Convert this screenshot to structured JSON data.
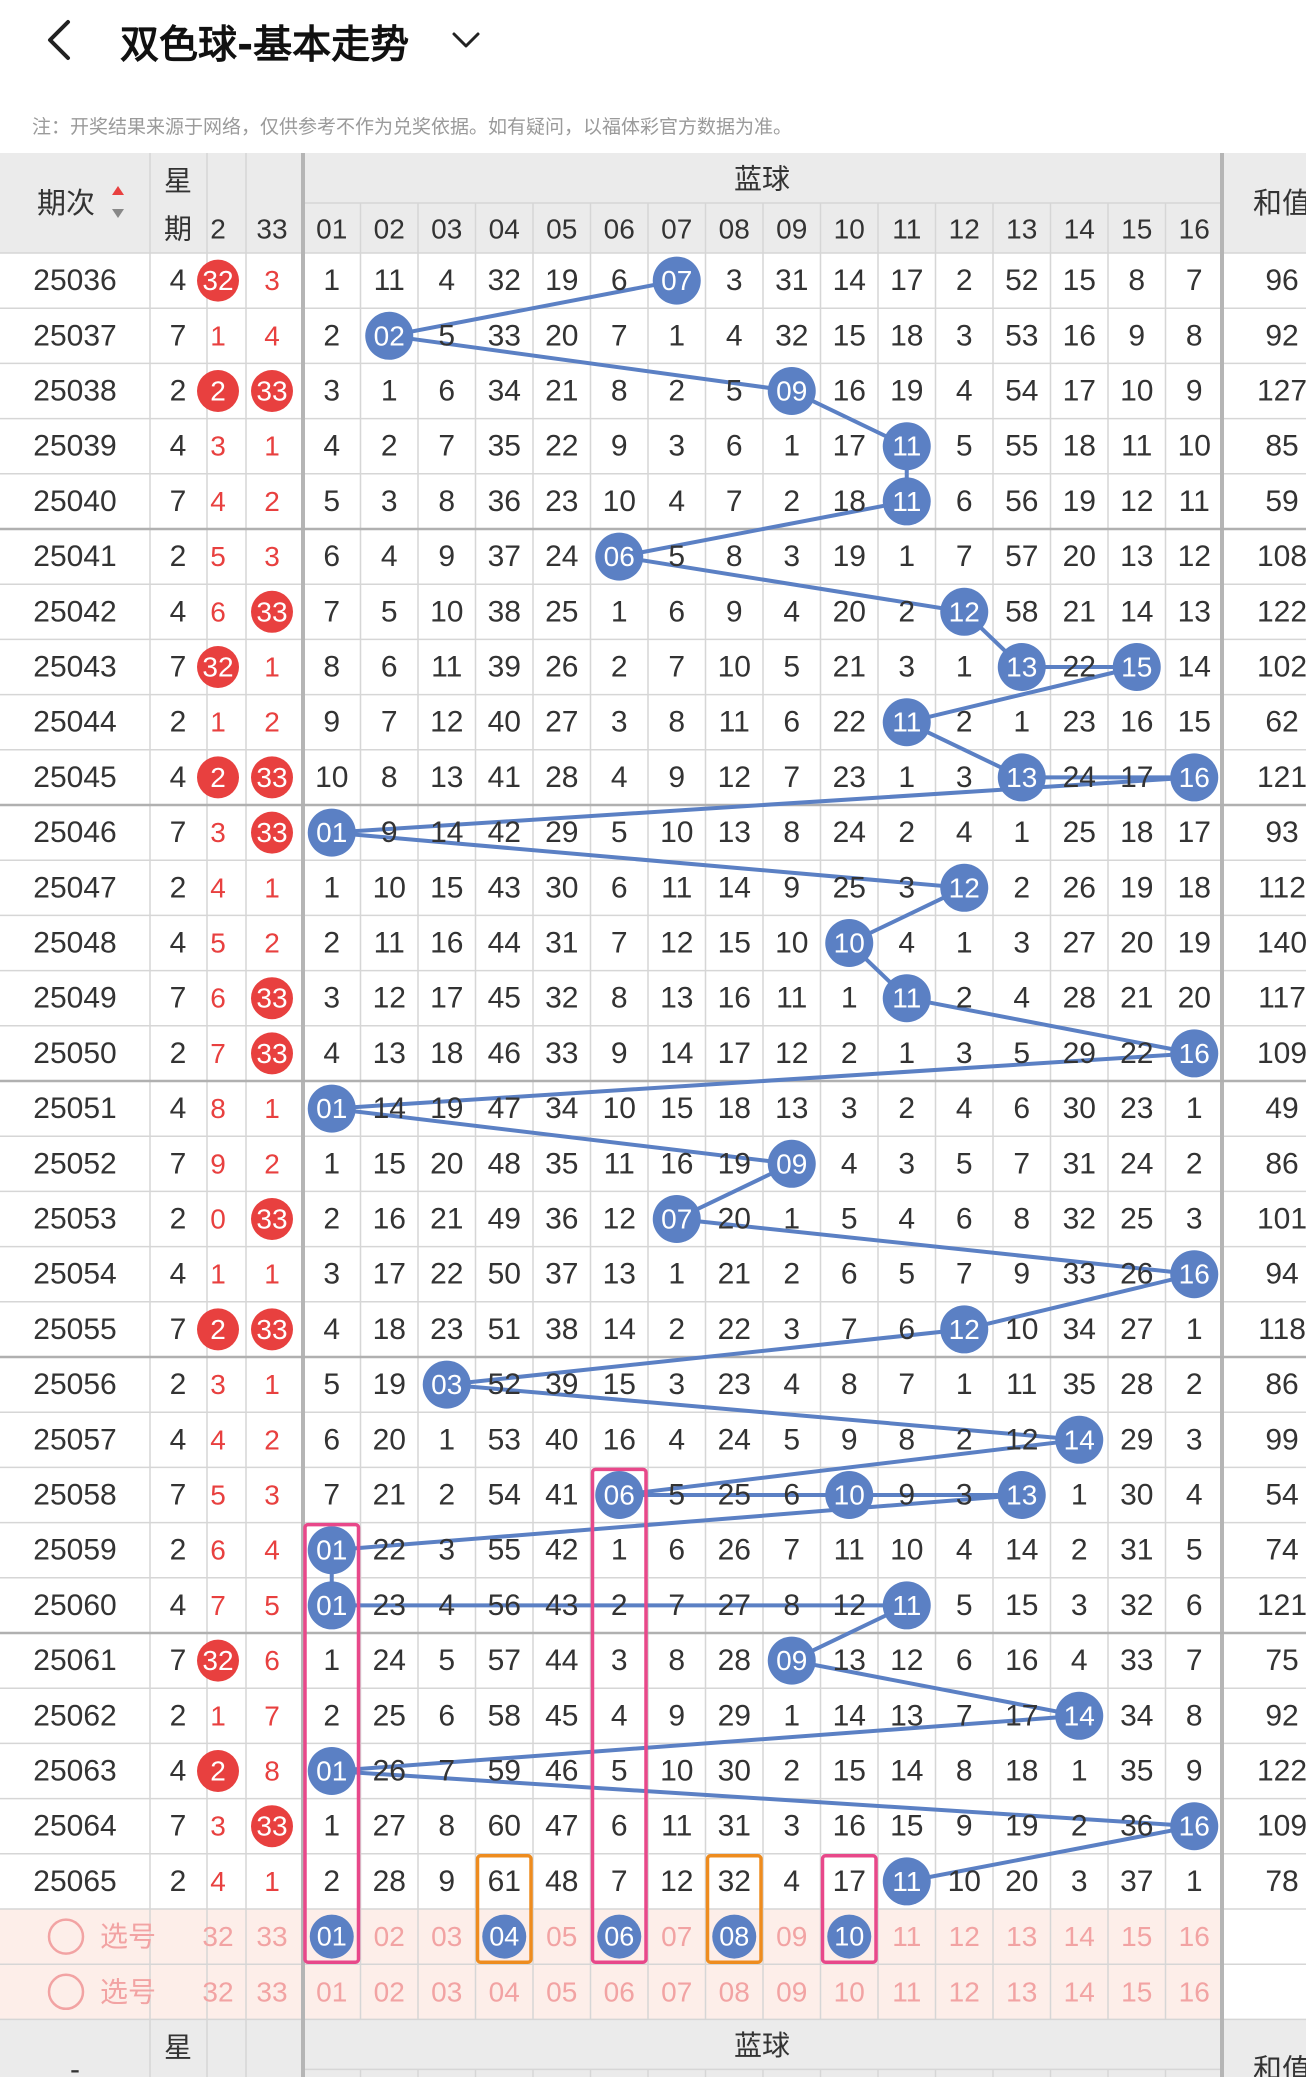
{
  "header": {
    "back_icon": "chevron-left-icon",
    "title": "双色球-基本走势",
    "dropdown_icon": "chevron-down-icon"
  },
  "note": "注：开奖结果来源于网络，仅供参考不作为兑奖依据。如有疑问，以福体彩官方数据为准。",
  "table": {
    "col_period": "期次",
    "sort_icon": "sort-arrows-icon",
    "col_weekday": "星期",
    "blue_group": "蓝球",
    "col_sum": "和值",
    "red_partial_headers": [
      "2",
      "33"
    ],
    "blue_headers": [
      "01",
      "02",
      "03",
      "04",
      "05",
      "06",
      "07",
      "08",
      "09",
      "10",
      "11",
      "12",
      "13",
      "14",
      "15",
      "16"
    ],
    "rows": [
      {
        "period": "25036",
        "weekday": "4",
        "red": [
          "32",
          "3"
        ],
        "blue": [
          "1",
          "11",
          "4",
          "32",
          "19",
          "6",
          "07",
          "3",
          "31",
          "14",
          "17",
          "2",
          "52",
          "15",
          "8",
          "7"
        ],
        "sum": "96"
      },
      {
        "period": "25037",
        "weekday": "7",
        "red": [
          "1",
          "4"
        ],
        "blue": [
          "2",
          "02",
          "5",
          "33",
          "20",
          "7",
          "1",
          "4",
          "32",
          "15",
          "18",
          "3",
          "53",
          "16",
          "9",
          "8"
        ],
        "sum": "92"
      },
      {
        "period": "25038",
        "weekday": "2",
        "red": [
          "2",
          "33"
        ],
        "blue": [
          "3",
          "1",
          "6",
          "34",
          "21",
          "8",
          "2",
          "5",
          "09",
          "16",
          "19",
          "4",
          "54",
          "17",
          "10",
          "9"
        ],
        "sum": "127"
      },
      {
        "period": "25039",
        "weekday": "4",
        "red": [
          "3",
          "1"
        ],
        "blue": [
          "4",
          "2",
          "7",
          "35",
          "22",
          "9",
          "3",
          "6",
          "1",
          "17",
          "11",
          "5",
          "55",
          "18",
          "11",
          "10"
        ],
        "sum": "85"
      },
      {
        "period": "25040",
        "weekday": "7",
        "red": [
          "4",
          "2"
        ],
        "blue": [
          "5",
          "3",
          "8",
          "36",
          "23",
          "10",
          "4",
          "7",
          "2",
          "18",
          "11",
          "6",
          "56",
          "19",
          "12",
          "11"
        ],
        "sum": "59"
      },
      {
        "period": "25041",
        "weekday": "2",
        "red": [
          "5",
          "3"
        ],
        "blue": [
          "6",
          "4",
          "9",
          "37",
          "24",
          "06",
          "5",
          "8",
          "3",
          "19",
          "1",
          "7",
          "57",
          "20",
          "13",
          "12"
        ],
        "sum": "108"
      },
      {
        "period": "25042",
        "weekday": "4",
        "red": [
          "6",
          "33"
        ],
        "blue": [
          "7",
          "5",
          "10",
          "38",
          "25",
          "1",
          "6",
          "9",
          "4",
          "20",
          "2",
          "12",
          "58",
          "21",
          "14",
          "13"
        ],
        "sum": "122"
      },
      {
        "period": "25043",
        "weekday": "7",
        "red": [
          "32",
          "1"
        ],
        "blue": [
          "8",
          "6",
          "11",
          "39",
          "26",
          "2",
          "7",
          "10",
          "5",
          "21",
          "3",
          "1",
          "13",
          "22",
          "15",
          "14"
        ],
        "sum": "102"
      },
      {
        "period": "25044",
        "weekday": "2",
        "red": [
          "1",
          "2"
        ],
        "blue": [
          "9",
          "7",
          "12",
          "40",
          "27",
          "3",
          "8",
          "11",
          "6",
          "22",
          "11",
          "2",
          "1",
          "23",
          "16",
          "15"
        ],
        "sum": "62"
      },
      {
        "period": "25045",
        "weekday": "4",
        "red": [
          "2",
          "33"
        ],
        "blue": [
          "10",
          "8",
          "13",
          "41",
          "28",
          "4",
          "9",
          "12",
          "7",
          "23",
          "1",
          "3",
          "13",
          "24",
          "17",
          "16"
        ],
        "sum": "121"
      },
      {
        "period": "25046",
        "weekday": "7",
        "red": [
          "3",
          "33"
        ],
        "blue": [
          "01",
          "9",
          "14",
          "42",
          "29",
          "5",
          "10",
          "13",
          "8",
          "24",
          "2",
          "4",
          "1",
          "25",
          "18",
          "17"
        ],
        "sum": "93"
      },
      {
        "period": "25047",
        "weekday": "2",
        "red": [
          "4",
          "1"
        ],
        "blue": [
          "1",
          "10",
          "15",
          "43",
          "30",
          "6",
          "11",
          "14",
          "9",
          "25",
          "3",
          "12",
          "2",
          "26",
          "19",
          "18"
        ],
        "sum": "112"
      },
      {
        "period": "25048",
        "weekday": "4",
        "red": [
          "5",
          "2"
        ],
        "blue": [
          "2",
          "11",
          "16",
          "44",
          "31",
          "7",
          "12",
          "15",
          "10",
          "10",
          "4",
          "1",
          "3",
          "27",
          "20",
          "19"
        ],
        "sum": "140"
      },
      {
        "period": "25049",
        "weekday": "7",
        "red": [
          "6",
          "33"
        ],
        "blue": [
          "3",
          "12",
          "17",
          "45",
          "32",
          "8",
          "13",
          "16",
          "11",
          "1",
          "11",
          "2",
          "4",
          "28",
          "21",
          "20"
        ],
        "sum": "117"
      },
      {
        "period": "25050",
        "weekday": "2",
        "red": [
          "7",
          "33"
        ],
        "blue": [
          "4",
          "13",
          "18",
          "46",
          "33",
          "9",
          "14",
          "17",
          "12",
          "2",
          "1",
          "3",
          "5",
          "29",
          "22",
          "16"
        ],
        "sum": "109"
      },
      {
        "period": "25051",
        "weekday": "4",
        "red": [
          "8",
          "1"
        ],
        "blue": [
          "01",
          "14",
          "19",
          "47",
          "34",
          "10",
          "15",
          "18",
          "13",
          "3",
          "2",
          "4",
          "6",
          "30",
          "23",
          "1"
        ],
        "sum": "49"
      },
      {
        "period": "25052",
        "weekday": "7",
        "red": [
          "9",
          "2"
        ],
        "blue": [
          "1",
          "15",
          "20",
          "48",
          "35",
          "11",
          "16",
          "19",
          "09",
          "4",
          "3",
          "5",
          "7",
          "31",
          "24",
          "2"
        ],
        "sum": "86"
      },
      {
        "period": "25053",
        "weekday": "2",
        "red": [
          "0",
          "33"
        ],
        "blue": [
          "2",
          "16",
          "21",
          "49",
          "36",
          "12",
          "07",
          "20",
          "1",
          "5",
          "4",
          "6",
          "8",
          "32",
          "25",
          "3"
        ],
        "sum": "101"
      },
      {
        "period": "25054",
        "weekday": "4",
        "red": [
          "1",
          "1"
        ],
        "blue": [
          "3",
          "17",
          "22",
          "50",
          "37",
          "13",
          "1",
          "21",
          "2",
          "6",
          "5",
          "7",
          "9",
          "33",
          "26",
          "16"
        ],
        "sum": "94"
      },
      {
        "period": "25055",
        "weekday": "7",
        "red": [
          "2",
          "33"
        ],
        "blue": [
          "4",
          "18",
          "23",
          "51",
          "38",
          "14",
          "2",
          "22",
          "3",
          "7",
          "6",
          "12",
          "10",
          "34",
          "27",
          "1"
        ],
        "sum": "118"
      },
      {
        "period": "25056",
        "weekday": "2",
        "red": [
          "3",
          "1"
        ],
        "blue": [
          "5",
          "19",
          "03",
          "52",
          "39",
          "15",
          "3",
          "23",
          "4",
          "8",
          "7",
          "1",
          "11",
          "35",
          "28",
          "2"
        ],
        "sum": "86"
      },
      {
        "period": "25057",
        "weekday": "4",
        "red": [
          "4",
          "2"
        ],
        "blue": [
          "6",
          "20",
          "1",
          "53",
          "40",
          "16",
          "4",
          "24",
          "5",
          "9",
          "8",
          "2",
          "12",
          "14",
          "29",
          "3"
        ],
        "sum": "99"
      },
      {
        "period": "25058",
        "weekday": "7",
        "red": [
          "5",
          "3"
        ],
        "blue": [
          "7",
          "21",
          "2",
          "54",
          "41",
          "06",
          "5",
          "25",
          "6",
          "10",
          "9",
          "3",
          "13",
          "1",
          "30",
          "4"
        ],
        "sum": "54"
      },
      {
        "period": "25059",
        "weekday": "2",
        "red": [
          "6",
          "4"
        ],
        "blue": [
          "01",
          "22",
          "3",
          "55",
          "42",
          "1",
          "6",
          "26",
          "7",
          "11",
          "10",
          "4",
          "14",
          "2",
          "31",
          "5"
        ],
        "sum": "74"
      },
      {
        "period": "25060",
        "weekday": "4",
        "red": [
          "7",
          "5"
        ],
        "blue": [
          "01",
          "23",
          "4",
          "56",
          "43",
          "2",
          "7",
          "27",
          "8",
          "12",
          "11",
          "5",
          "15",
          "3",
          "32",
          "6"
        ],
        "sum": "121"
      },
      {
        "period": "25061",
        "weekday": "7",
        "red": [
          "32",
          "6"
        ],
        "blue": [
          "1",
          "24",
          "5",
          "57",
          "44",
          "3",
          "8",
          "28",
          "09",
          "13",
          "12",
          "6",
          "16",
          "4",
          "33",
          "7"
        ],
        "sum": "75"
      },
      {
        "period": "25062",
        "weekday": "2",
        "red": [
          "1",
          "7"
        ],
        "blue": [
          "2",
          "25",
          "6",
          "58",
          "45",
          "4",
          "9",
          "29",
          "1",
          "14",
          "13",
          "7",
          "17",
          "14",
          "34",
          "8"
        ],
        "sum": "92"
      },
      {
        "period": "25063",
        "weekday": "4",
        "red": [
          "2",
          "8"
        ],
        "blue": [
          "01",
          "26",
          "7",
          "59",
          "46",
          "5",
          "10",
          "30",
          "2",
          "15",
          "14",
          "8",
          "18",
          "1",
          "35",
          "9"
        ],
        "sum": "122"
      },
      {
        "period": "25064",
        "weekday": "7",
        "red": [
          "3",
          "33"
        ],
        "blue": [
          "1",
          "27",
          "8",
          "60",
          "47",
          "6",
          "11",
          "31",
          "3",
          "16",
          "15",
          "9",
          "19",
          "2",
          "36",
          "16"
        ],
        "sum": "109"
      },
      {
        "period": "25065",
        "weekday": "2",
        "red": [
          "4",
          "1"
        ],
        "blue": [
          "2",
          "28",
          "9",
          "61",
          "48",
          "7",
          "12",
          "32",
          "4",
          "17",
          "11",
          "10",
          "20",
          "3",
          "37",
          "1"
        ],
        "sum": "78"
      }
    ],
    "pick_rows": [
      {
        "label": "选号",
        "red": [
          "32",
          "33"
        ],
        "blue": [
          "01",
          "02",
          "03",
          "04",
          "05",
          "06",
          "07",
          "08",
          "09",
          "10",
          "11",
          "12",
          "13",
          "14",
          "15",
          "16"
        ],
        "selected": [
          "01",
          "04",
          "06",
          "08",
          "10"
        ]
      },
      {
        "label": "选号",
        "red": [
          "32",
          "33"
        ],
        "blue": [
          "01",
          "02",
          "03",
          "04",
          "05",
          "06",
          "07",
          "08",
          "09",
          "10",
          "11",
          "12",
          "13",
          "14",
          "15",
          "16"
        ],
        "selected": []
      }
    ],
    "footer": {
      "col_period": "-",
      "col_weekday": "星期",
      "blue_group": "蓝球",
      "col_sum": "和值"
    }
  },
  "colors": {
    "blue_ball": "#5b80c4",
    "red_ball": "#e8403f",
    "red_text": "#e8403f",
    "pink_frame": "#e8488a",
    "orange_frame": "#ee8c1f",
    "header_bg": "#ebebeb",
    "pick_bg": "#fdeee9",
    "pick_text": "#f2a3a3",
    "grid_line": "#d6d6d6"
  }
}
